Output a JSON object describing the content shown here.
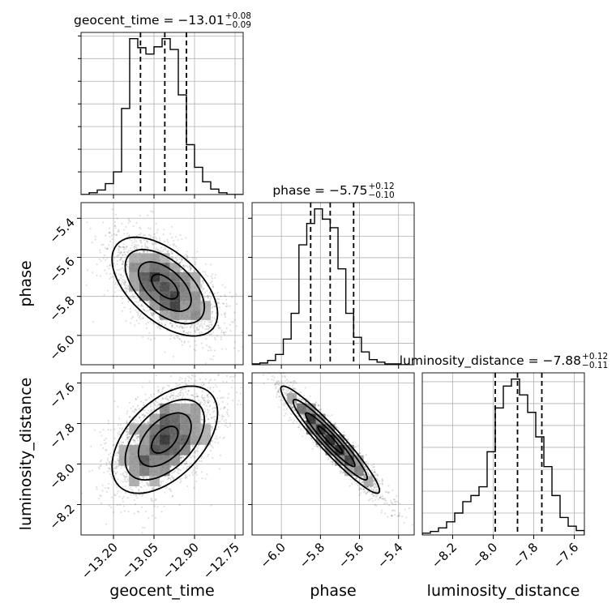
{
  "chart_data": {
    "type": "corner",
    "parameters": [
      "geocent_time",
      "phase",
      "luminosity_distance"
    ],
    "ranges": {
      "geocent_time": [
        -13.32,
        -12.72
      ],
      "phase": [
        -6.15,
        -5.32
      ],
      "luminosity_distance": [
        -8.35,
        -7.55
      ]
    },
    "ticks": {
      "geocent_time": [
        -13.2,
        -13.05,
        -12.9,
        -12.75
      ],
      "phase": [
        -6.0,
        -5.8,
        -5.6,
        -5.4
      ],
      "luminosity_distance": [
        -8.2,
        -8.0,
        -7.8,
        -7.6
      ]
    },
    "tick_labels": {
      "geocent_time": [
        "−13.20",
        "−13.05",
        "−12.90",
        "−12.75"
      ],
      "phase": [
        "−6.0",
        "−5.8",
        "−5.6",
        "−5.4"
      ],
      "luminosity_distance": [
        "−8.2",
        "−8.0",
        "−7.8",
        "−7.6"
      ]
    },
    "titles": [
      {
        "param": "geocent_time",
        "label": "geocent_time = −13.01",
        "upper": "+0.08",
        "lower": "−0.09"
      },
      {
        "param": "phase",
        "label": "phase = −5.75",
        "upper": "+0.12",
        "lower": "−0.10"
      },
      {
        "param": "luminosity_distance",
        "label": "luminosity_distance = −7.88",
        "upper": "+0.12",
        "lower": "−0.11"
      }
    ],
    "quantiles": {
      "geocent_time": [
        -13.1,
        -13.01,
        -12.93
      ],
      "phase": [
        -5.85,
        -5.75,
        -5.63
      ],
      "luminosity_distance": [
        -7.99,
        -7.88,
        -7.76
      ]
    },
    "histograms": {
      "geocent_time": {
        "edges": [
          -13.32,
          -13.29,
          -13.26,
          -13.23,
          -13.2,
          -13.17,
          -13.14,
          -13.11,
          -13.08,
          -13.05,
          -13.02,
          -12.99,
          -12.96,
          -12.93,
          -12.9,
          -12.87,
          -12.84,
          -12.81,
          -12.78,
          -12.75,
          -12.72
        ],
        "counts": [
          0,
          2,
          5,
          12,
          25,
          95,
          172,
          162,
          155,
          163,
          172,
          160,
          110,
          55,
          30,
          14,
          6,
          2,
          0,
          0
        ]
      },
      "phase": {
        "edges": [
          -6.15,
          -6.11,
          -6.07,
          -6.03,
          -5.99,
          -5.95,
          -5.91,
          -5.87,
          -5.83,
          -5.79,
          -5.75,
          -5.71,
          -5.67,
          -5.63,
          -5.59,
          -5.55,
          -5.51,
          -5.47,
          -5.43,
          -5.39,
          -5.35
        ],
        "counts": [
          1,
          2,
          5,
          12,
          30,
          60,
          140,
          165,
          182,
          170,
          160,
          112,
          60,
          32,
          15,
          6,
          3,
          1,
          1,
          0
        ]
      },
      "luminosity_distance": {
        "edges": [
          -8.35,
          -8.31,
          -8.27,
          -8.23,
          -8.19,
          -8.15,
          -8.11,
          -8.07,
          -8.03,
          -7.99,
          -7.95,
          -7.91,
          -7.87,
          -7.83,
          -7.79,
          -7.75,
          -7.71,
          -7.67,
          -7.63,
          -7.59,
          -7.55
        ],
        "counts": [
          2,
          4,
          8,
          15,
          25,
          38,
          45,
          55,
          95,
          145,
          170,
          178,
          160,
          140,
          112,
          78,
          45,
          20,
          10,
          5
        ]
      }
    },
    "correlations": {
      "geocent_time|phase": -0.55,
      "geocent_time|luminosity_distance": 0.5,
      "phase|luminosity_distance": -0.95
    },
    "axis_labels": {
      "geocent_time": "geocent_time",
      "phase": "phase",
      "luminosity_distance": "luminosity_distance"
    },
    "grid": true
  }
}
